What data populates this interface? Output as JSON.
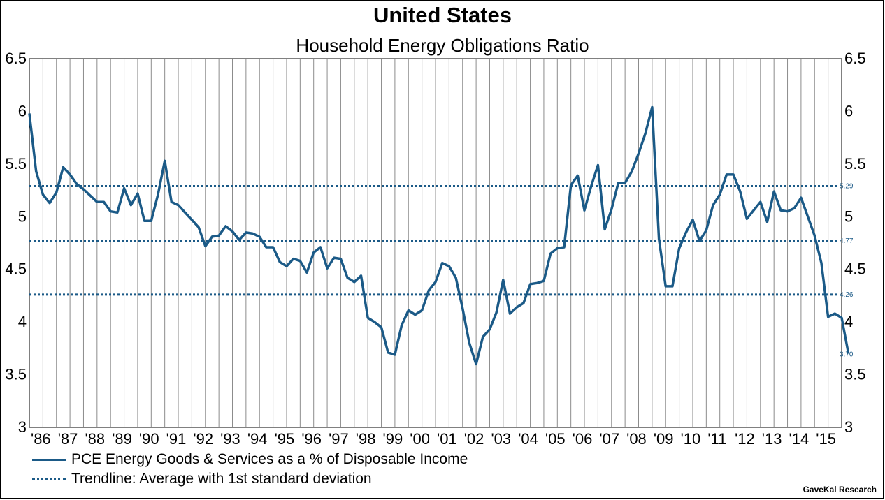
{
  "chart_data": {
    "type": "line",
    "title": "United States",
    "subtitle": "Household Energy Obligations Ratio",
    "ylim": [
      3,
      6.5
    ],
    "yticks": [
      "3",
      "3.5",
      "4",
      "4.5",
      "5",
      "5.5",
      "6",
      "6.5"
    ],
    "x_tick_labels": [
      "'86",
      "'87",
      "'88",
      "'89",
      "'90",
      "'91",
      "'92",
      "'93",
      "'94",
      "'95",
      "'96",
      "'97",
      "'98",
      "'99",
      "'00",
      "'01",
      "'02",
      "'03",
      "'04",
      "'05",
      "'06",
      "'07",
      "'08",
      "'09",
      "'10",
      "'11",
      "'12",
      "'13",
      "'14",
      "'15"
    ],
    "grid": "vertical",
    "series": [
      {
        "name": "PCE Energy Goods & Services as a % of Disposable Income",
        "style": "solid",
        "x_start": 1986.0,
        "x_step": 0.25,
        "values": [
          5.98,
          5.43,
          5.21,
          5.13,
          5.23,
          5.47,
          5.4,
          5.31,
          5.26,
          5.2,
          5.14,
          5.14,
          5.05,
          5.04,
          5.27,
          5.11,
          5.22,
          4.96,
          4.96,
          5.21,
          5.53,
          5.14,
          5.11,
          5.04,
          4.97,
          4.9,
          4.72,
          4.81,
          4.82,
          4.91,
          4.86,
          4.78,
          4.85,
          4.84,
          4.81,
          4.71,
          4.71,
          4.57,
          4.53,
          4.6,
          4.58,
          4.47,
          4.66,
          4.71,
          4.51,
          4.61,
          4.6,
          4.42,
          4.38,
          4.44,
          4.04,
          4.0,
          3.95,
          3.71,
          3.69,
          3.97,
          4.11,
          4.07,
          4.11,
          4.3,
          4.38,
          4.56,
          4.53,
          4.42,
          4.13,
          3.8,
          3.6,
          3.86,
          3.93,
          4.09,
          4.4,
          4.08,
          4.14,
          4.18,
          4.36,
          4.37,
          4.39,
          4.65,
          4.7,
          4.71,
          5.3,
          5.39,
          5.06,
          5.29,
          5.49,
          4.88,
          5.07,
          5.32,
          5.32,
          5.43,
          5.6,
          5.79,
          6.04,
          4.79,
          4.34,
          4.34,
          4.7,
          4.85,
          4.97,
          4.77,
          4.87,
          5.11,
          5.21,
          5.4,
          5.4,
          5.24,
          4.98,
          5.06,
          5.14,
          4.95,
          5.24,
          5.06,
          5.05,
          5.08,
          5.18,
          5.0,
          4.82,
          4.56,
          4.05,
          4.08,
          4.04,
          3.7
        ]
      },
      {
        "name": "Trendline: Average with 1st standard deviation",
        "style": "dotted",
        "reference_lines": [
          5.29,
          4.77,
          4.26
        ],
        "reference_labels": [
          "5.29",
          "4.77",
          "4.26"
        ]
      }
    ],
    "last_value_label": "3.70",
    "legend_position": "bottom-left",
    "source": "GaveKal Research"
  }
}
